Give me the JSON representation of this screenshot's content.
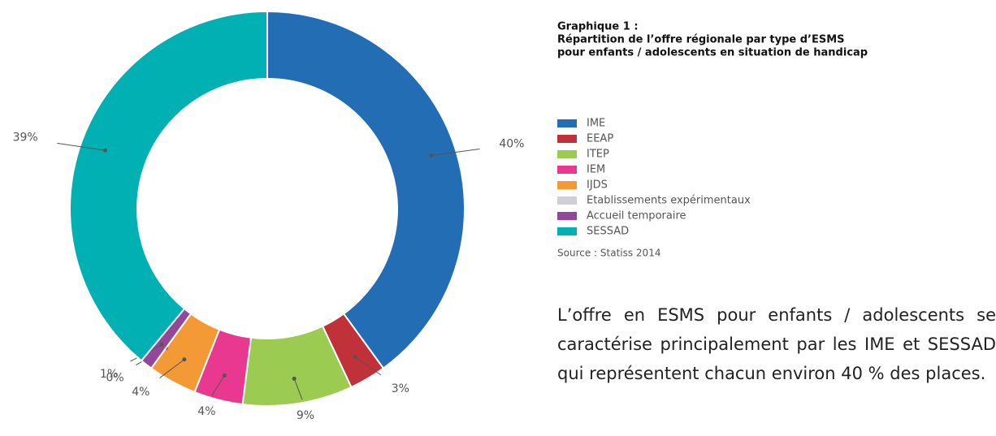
{
  "chart_data": {
    "type": "donut",
    "title": "Graphique 1 :",
    "subtitle": [
      "Répartition de l’offre régionale par type d’ESMS",
      "pour enfants / adolescents en situation de handicap"
    ],
    "categories": [
      "IME",
      "EEAP",
      "ITEP",
      "IEM",
      "IJDS",
      "Etablissements expérimentaux",
      "Accueil temporaire",
      "SESSAD"
    ],
    "values": [
      40,
      3,
      9,
      4,
      4,
      0,
      1,
      39
    ],
    "value_labels": [
      "40%",
      "3%",
      "9%",
      "4%",
      "4%",
      "0%",
      "1%",
      "39%"
    ],
    "colors": [
      "#236db5",
      "#c0313a",
      "#9ccb52",
      "#e8388f",
      "#f39a36",
      "#d0d0d4",
      "#93479b",
      "#00b0b3"
    ],
    "source": "Source : Statiss 2014"
  },
  "text": "L’offre en ESMS pour enfants / adolescents se caractérise principalement par les IME et SESSAD qui représentent chacun environ 40 % des places."
}
